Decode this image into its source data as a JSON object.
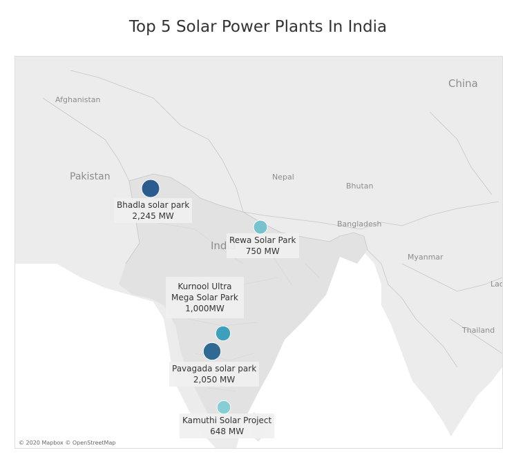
{
  "title": "Top 5 Solar Power Plants In India",
  "attribution": "© 2020 Mapbox © OpenStreetMap",
  "country_labels": {
    "afghanistan": "Afghanistan",
    "pakistan": "Pakistan",
    "nepal": "Nepal",
    "bhutan": "Bhutan",
    "bangladesh": "Bangladesh",
    "india": "India",
    "myanmar": "Myanmar",
    "china": "China",
    "thailand": "Thailand",
    "laos": "Lao"
  },
  "plants": [
    {
      "name": "Bhadla solar park",
      "capacity": "2,245 MW",
      "capacity_mw": 2245,
      "color": "#2b5c8f"
    },
    {
      "name": "Rewa Solar Park",
      "capacity": "750 MW",
      "capacity_mw": 750,
      "color": "#76c3cf"
    },
    {
      "name_line1": "Kurnool Ultra",
      "name_line2": "Mega Solar Park",
      "capacity": "1,000MW",
      "capacity_mw": 1000,
      "color": "#3c9fbd"
    },
    {
      "name": "Pavagada solar park",
      "capacity": "2,050 MW",
      "capacity_mw": 2050,
      "color": "#2f6a94"
    },
    {
      "name": "Kamuthi Solar Project",
      "capacity": "648 MW",
      "capacity_mw": 648,
      "color": "#86cdd6"
    }
  ],
  "colors": {
    "land_focus": "#e4e4e4",
    "land_other": "#efefef",
    "sea": "#ffffff",
    "border": "#c4c4c4"
  }
}
